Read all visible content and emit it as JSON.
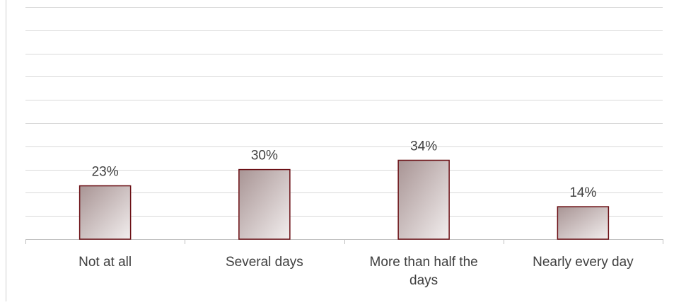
{
  "chart_data": {
    "type": "bar",
    "title": "",
    "xlabel": "",
    "ylabel": "",
    "categories": [
      [
        "Not at all"
      ],
      [
        "Several days"
      ],
      [
        "More than half the",
        "days"
      ],
      [
        "Nearly every day"
      ]
    ],
    "values": [
      23,
      30,
      34,
      14
    ],
    "data_labels": [
      "23%",
      "30%",
      "34%",
      "14%"
    ],
    "ylim": [
      0,
      100
    ],
    "grid": true,
    "legend": "none",
    "colors": {
      "bar_gradient_dark": "#a89494",
      "bar_gradient_light": "#f2eeee",
      "bar_border": "#6b0f14",
      "gridline": "#d9d9d9",
      "axis": "#bfbfbf",
      "text": "#404040"
    }
  }
}
